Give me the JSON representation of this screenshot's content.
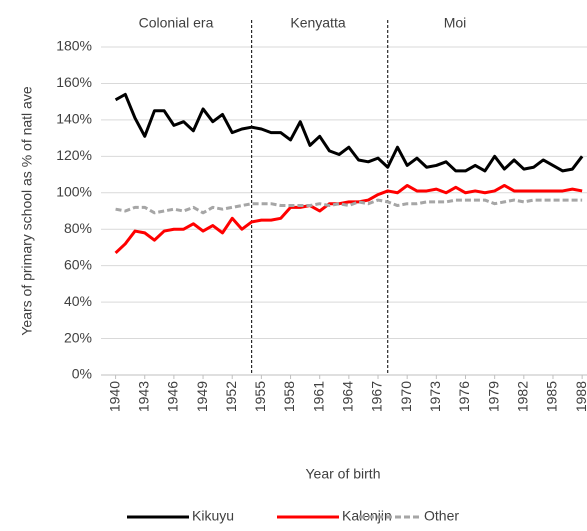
{
  "chart_data": {
    "type": "line",
    "annotations": [
      "Colonial era",
      "Kenyatta",
      "Moi"
    ],
    "vlines": [
      1954,
      1968
    ],
    "y_label": "Years of primary school as % of natl ave",
    "x_label": "Year of birth",
    "x": [
      1940,
      1941,
      1942,
      1943,
      1944,
      1945,
      1946,
      1947,
      1948,
      1949,
      1950,
      1951,
      1952,
      1953,
      1954,
      1955,
      1956,
      1957,
      1958,
      1959,
      1960,
      1961,
      1962,
      1963,
      1964,
      1965,
      1966,
      1967,
      1968,
      1969,
      1970,
      1971,
      1972,
      1973,
      1974,
      1975,
      1976,
      1977,
      1978,
      1979,
      1980,
      1981,
      1982,
      1983,
      1984,
      1985,
      1986,
      1987,
      1988
    ],
    "xlim": [
      1938.5,
      1988.5
    ],
    "xticks": [
      1940,
      1943,
      1946,
      1949,
      1952,
      1955,
      1958,
      1961,
      1964,
      1967,
      1970,
      1973,
      1976,
      1979,
      1982,
      1985,
      1988
    ],
    "ylim": [
      0,
      180
    ],
    "yticks": [
      {
        "value": 0,
        "label": "0%"
      },
      {
        "value": 20,
        "label": "20%"
      },
      {
        "value": 40,
        "label": "40%"
      },
      {
        "value": 60,
        "label": "60%"
      },
      {
        "value": 80,
        "label": "80%"
      },
      {
        "value": 100,
        "label": "100%"
      },
      {
        "value": 120,
        "label": "120%"
      },
      {
        "value": 140,
        "label": "140%"
      },
      {
        "value": 160,
        "label": "160%"
      },
      {
        "value": 180,
        "label": "180%"
      }
    ],
    "grid": true,
    "legend": "bottom",
    "series": [
      {
        "name": "Kikuyu",
        "color": "#000000",
        "dashed": false,
        "values": [
          151,
          154,
          141,
          131,
          145,
          145,
          137,
          139,
          134,
          146,
          139,
          143,
          133,
          135,
          136,
          135,
          133,
          133,
          129,
          139,
          126,
          131,
          123,
          121,
          125,
          118,
          117,
          119,
          114,
          125,
          115,
          119,
          114,
          115,
          117,
          112,
          112,
          115,
          112,
          120,
          113,
          118,
          113,
          114,
          118,
          115,
          112,
          113,
          120
        ]
      },
      {
        "name": "Kalenjin",
        "color": "#ff0000",
        "dashed": false,
        "values": [
          67,
          72,
          79,
          78,
          74,
          79,
          80,
          80,
          83,
          79,
          82,
          78,
          86,
          80,
          84,
          85,
          85,
          86,
          92,
          92,
          93,
          90,
          94,
          94,
          95,
          95,
          96,
          99,
          101,
          100,
          104,
          101,
          101,
          102,
          100,
          103,
          100,
          101,
          100,
          101,
          104,
          101,
          101,
          101,
          101,
          101,
          101,
          102,
          101
        ]
      },
      {
        "name": "Other",
        "color": "#a6a6a6",
        "dashed": true,
        "values": [
          91,
          90,
          92,
          92,
          89,
          90,
          91,
          90,
          92,
          89,
          92,
          91,
          92,
          93,
          94,
          94,
          94,
          93,
          93,
          93,
          93,
          94,
          93,
          94,
          93,
          95,
          94,
          96,
          95,
          93,
          94,
          94,
          95,
          95,
          95,
          96,
          96,
          96,
          96,
          94,
          95,
          96,
          95,
          96,
          96,
          96,
          96,
          96,
          96
        ]
      }
    ]
  }
}
